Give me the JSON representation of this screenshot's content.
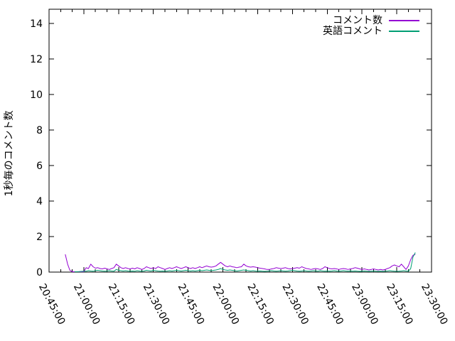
{
  "chart_data": {
    "type": "line",
    "title": "",
    "xlabel": "",
    "ylabel": "1秒毎のコメント数",
    "grid": false,
    "legend_position": "top-right-inside",
    "background_color": "#ffffff",
    "axis_color": "#000000",
    "x_axis": {
      "start": "20:45:00",
      "end": "23:30:00",
      "total_minutes": 165,
      "major_tick_interval_minutes": 15,
      "minor_tick_interval_minutes": 5,
      "tick_labels": [
        "20:45:00",
        "21:00:00",
        "21:15:00",
        "21:30:00",
        "21:45:00",
        "22:00:00",
        "22:15:00",
        "22:30:00",
        "22:45:00",
        "23:00:00",
        "23:15:00",
        "23:30:00"
      ]
    },
    "y_axis": {
      "min": 0,
      "max": 14.8,
      "ticks": [
        0,
        2,
        4,
        6,
        8,
        10,
        12,
        14
      ]
    },
    "series": [
      {
        "name": "コメント数",
        "color": "#9400d3",
        "start_minute": 7,
        "step_minutes": 1,
        "values": [
          1.0,
          0.45,
          0.1,
          0.02,
          0.02,
          0.02,
          0.02,
          0.02,
          0.02,
          0.25,
          0.2,
          0.45,
          0.3,
          0.22,
          0.25,
          0.2,
          0.18,
          0.22,
          0.18,
          0.15,
          0.2,
          0.25,
          0.45,
          0.35,
          0.25,
          0.2,
          0.25,
          0.2,
          0.18,
          0.22,
          0.18,
          0.25,
          0.2,
          0.15,
          0.2,
          0.3,
          0.25,
          0.2,
          0.25,
          0.2,
          0.3,
          0.25,
          0.2,
          0.15,
          0.2,
          0.25,
          0.2,
          0.25,
          0.3,
          0.25,
          0.2,
          0.25,
          0.3,
          0.25,
          0.2,
          0.25,
          0.2,
          0.25,
          0.3,
          0.25,
          0.3,
          0.35,
          0.3,
          0.28,
          0.3,
          0.35,
          0.45,
          0.55,
          0.45,
          0.35,
          0.3,
          0.35,
          0.3,
          0.28,
          0.25,
          0.28,
          0.3,
          0.45,
          0.35,
          0.3,
          0.28,
          0.3,
          0.28,
          0.25,
          0.22,
          0.2,
          0.18,
          0.15,
          0.15,
          0.18,
          0.2,
          0.25,
          0.22,
          0.2,
          0.22,
          0.25,
          0.2,
          0.18,
          0.2,
          0.22,
          0.25,
          0.22,
          0.3,
          0.25,
          0.2,
          0.18,
          0.15,
          0.18,
          0.2,
          0.18,
          0.15,
          0.2,
          0.3,
          0.25,
          0.2,
          0.18,
          0.2,
          0.18,
          0.15,
          0.18,
          0.2,
          0.18,
          0.15,
          0.18,
          0.2,
          0.25,
          0.22,
          0.18,
          0.15,
          0.18,
          0.15,
          0.12,
          0.15,
          0.18,
          0.15,
          0.12,
          0.15,
          0.12,
          0.15,
          0.2,
          0.25,
          0.35,
          0.4,
          0.35,
          0.3,
          0.45,
          0.3,
          0.15,
          0.35,
          0.7,
          0.95,
          1.0
        ]
      },
      {
        "name": "英語コメント",
        "color": "#009e73",
        "start_minute": 11,
        "step_minutes": 1,
        "values": [
          0.02,
          0.02,
          0.03,
          0.04,
          0.05,
          0.05,
          0.08,
          0.06,
          0.05,
          0.08,
          0.1,
          0.08,
          0.06,
          0.05,
          0.06,
          0.08,
          0.06,
          0.05,
          0.15,
          0.1,
          0.08,
          0.06,
          0.08,
          0.06,
          0.05,
          0.06,
          0.05,
          0.08,
          0.06,
          0.05,
          0.06,
          0.1,
          0.08,
          0.06,
          0.1,
          0.08,
          0.06,
          0.05,
          0.06,
          0.05,
          0.06,
          0.08,
          0.06,
          0.08,
          0.1,
          0.08,
          0.06,
          0.08,
          0.1,
          0.08,
          0.06,
          0.08,
          0.06,
          0.08,
          0.1,
          0.08,
          0.1,
          0.12,
          0.1,
          0.08,
          0.1,
          0.12,
          0.15,
          0.2,
          0.15,
          0.12,
          0.1,
          0.12,
          0.1,
          0.08,
          0.06,
          0.08,
          0.1,
          0.12,
          0.1,
          0.08,
          0.06,
          0.08,
          0.06,
          0.05,
          0.06,
          0.05,
          0.04,
          0.05,
          0.06,
          0.08,
          0.06,
          0.05,
          0.06,
          0.08,
          0.06,
          0.05,
          0.06,
          0.08,
          0.1,
          0.08,
          0.06,
          0.05,
          0.06,
          0.08,
          0.06,
          0.05,
          0.06,
          0.08,
          0.06,
          0.05,
          0.08,
          0.06,
          0.05,
          0.06,
          0.05,
          0.06,
          0.08,
          0.06,
          0.05,
          0.06,
          0.08,
          0.06,
          0.05,
          0.06,
          0.05,
          0.06,
          0.05,
          0.04,
          0.05,
          0.06,
          0.05,
          0.04,
          0.05,
          0.06,
          0.05,
          0.04,
          0.05,
          0.04,
          0.05,
          0.06,
          0.08,
          0.06,
          0.05,
          0.04,
          0.05,
          0.06,
          0.08,
          0.06,
          0.05,
          0.2,
          0.85,
          1.1
        ]
      }
    ]
  }
}
